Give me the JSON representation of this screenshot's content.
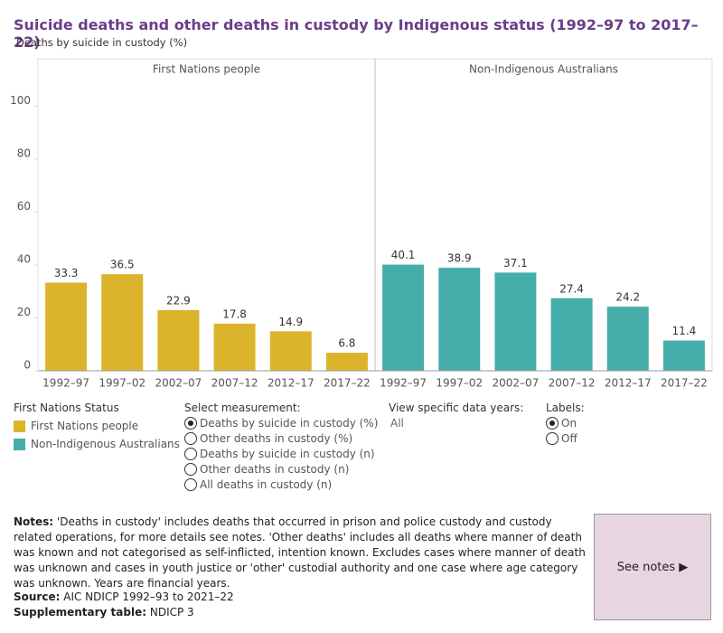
{
  "chart_data": {
    "type": "bar",
    "title": "Suicide deaths and other deaths in custody by Indigenous status  (1992–97 to 2017–22)",
    "subtitle": "Deaths by suicide in custody (%)",
    "categories": [
      "1992–97",
      "1997–02",
      "2002–07",
      "2007–12",
      "2012–17",
      "2017–22"
    ],
    "series": [
      {
        "name": "First Nations people",
        "color": "#dbb42c",
        "values": [
          33.3,
          36.5,
          22.9,
          17.8,
          14.9,
          6.8
        ]
      },
      {
        "name": "Non-Indigenous Australians",
        "color": "#45aeaa",
        "values": [
          40.1,
          38.9,
          37.1,
          27.4,
          24.2,
          11.4
        ]
      }
    ],
    "ylim": [
      0,
      110
    ],
    "yticks": [
      0,
      20,
      40,
      60,
      80,
      100
    ],
    "grid": false,
    "legend_title": "First Nations Status"
  },
  "controls": {
    "measurement": {
      "label": "Select measurement:",
      "options": [
        "Deaths by suicide in custody (%)",
        "Other deaths in custody (%)",
        "Deaths by suicide in custody (n)",
        "Other deaths in custody (n)",
        "All deaths in custody (n)"
      ]
    },
    "years": {
      "label": "View specific data years:",
      "value": "All"
    },
    "labels": {
      "label": "Labels:",
      "options": [
        "On",
        "Off"
      ]
    }
  },
  "notes": {
    "label": "Notes:",
    "text": "'Deaths in custody' includes deaths that occurred in prison and police custody and custody related operations, for more details see notes. 'Other deaths' includes all deaths where manner of death was known and not categorised as self-inflicted, intention known. Excludes cases where manner of death was unknown and cases in youth justice or 'other' custodial authority and one case where age category was unknown. Years are financial years."
  },
  "source": {
    "label": "Source:",
    "text": "AIC NDICP 1992–93 to 2021–22"
  },
  "supplementary": {
    "label": "Supplementary table:",
    "text": "NDICP 3"
  },
  "button": {
    "label": "See notes ▶"
  }
}
